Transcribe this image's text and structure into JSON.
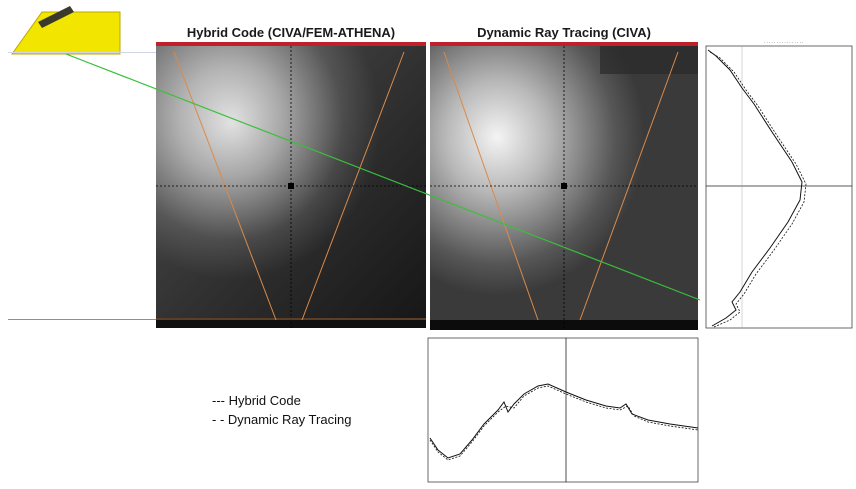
{
  "titles": {
    "left": "Hybrid Code (CIVA/FEM-ATHENA)",
    "right": "Dynamic Ray Tracing (CIVA)"
  },
  "legend": {
    "hybrid": "--- Hybrid Code",
    "ray": "- - Dynamic Ray Tracing"
  },
  "colors": {
    "probe": "#f2e600",
    "beam_line": "#3bbf3b",
    "cone_line": "#d98a4a",
    "surface_line": "#e07060",
    "panel_frame_top": "#c0202a"
  }
}
